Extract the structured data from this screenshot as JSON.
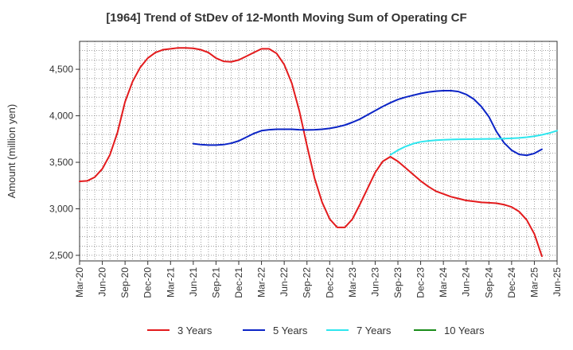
{
  "chart_data": {
    "type": "line",
    "title": "[1964]  Trend of StDev of 12-Month Moving Sum of Operating CF",
    "xlabel": "",
    "ylabel": "Amount (million yen)",
    "ylim": [
      2440,
      4800
    ],
    "yticks": [
      2500,
      3000,
      3500,
      4000,
      4500
    ],
    "ytick_labels": [
      "2,500",
      "3,000",
      "3,500",
      "4,000",
      "4,500"
    ],
    "xlim": [
      "2020-03",
      "2025-06"
    ],
    "xtick_labels": [
      "Mar-20",
      "Jun-20",
      "Sep-20",
      "Dec-20",
      "Mar-21",
      "Jun-21",
      "Sep-21",
      "Dec-21",
      "Mar-22",
      "Jun-22",
      "Sep-22",
      "Dec-22",
      "Mar-23",
      "Jun-23",
      "Sep-23",
      "Dec-23",
      "Mar-24",
      "Jun-24",
      "Sep-24",
      "Dec-24",
      "Mar-25",
      "Jun-25"
    ],
    "grid": true,
    "legend_position": "bottom",
    "series": [
      {
        "name": "3 Years",
        "color": "#e31a1c",
        "start": "2020-03",
        "values": [
          3295,
          3300,
          3340,
          3430,
          3580,
          3820,
          4150,
          4370,
          4520,
          4620,
          4680,
          4710,
          4720,
          4730,
          4730,
          4725,
          4710,
          4680,
          4620,
          4585,
          4580,
          4600,
          4640,
          4680,
          4720,
          4720,
          4670,
          4550,
          4350,
          4050,
          3680,
          3330,
          3070,
          2890,
          2800,
          2800,
          2890,
          3050,
          3220,
          3390,
          3510,
          3560,
          3510,
          3440,
          3370,
          3300,
          3240,
          3190,
          3160,
          3130,
          3110,
          3090,
          3080,
          3070,
          3065,
          3060,
          3045,
          3020,
          2970,
          2880,
          2730,
          2490
        ]
      },
      {
        "name": "5 Years",
        "color": "#0b24c6",
        "start": "2021-06",
        "values": [
          3700,
          3690,
          3685,
          3685,
          3690,
          3705,
          3730,
          3770,
          3810,
          3840,
          3850,
          3855,
          3855,
          3855,
          3850,
          3848,
          3850,
          3855,
          3865,
          3880,
          3900,
          3930,
          3965,
          4010,
          4055,
          4100,
          4140,
          4175,
          4200,
          4220,
          4240,
          4255,
          4265,
          4270,
          4270,
          4260,
          4230,
          4180,
          4100,
          3990,
          3830,
          3710,
          3630,
          3585,
          3575,
          3595,
          3640
        ]
      },
      {
        "name": "7 Years",
        "color": "#2ee6ee",
        "start": "2023-08",
        "values": [
          3580,
          3630,
          3670,
          3700,
          3720,
          3730,
          3738,
          3742,
          3745,
          3747,
          3748,
          3749,
          3750,
          3751,
          3752,
          3755,
          3758,
          3762,
          3770,
          3780,
          3795,
          3815,
          3840
        ]
      },
      {
        "name": "10 Years",
        "color": "#1a8c1a",
        "start": "",
        "values": []
      }
    ]
  }
}
